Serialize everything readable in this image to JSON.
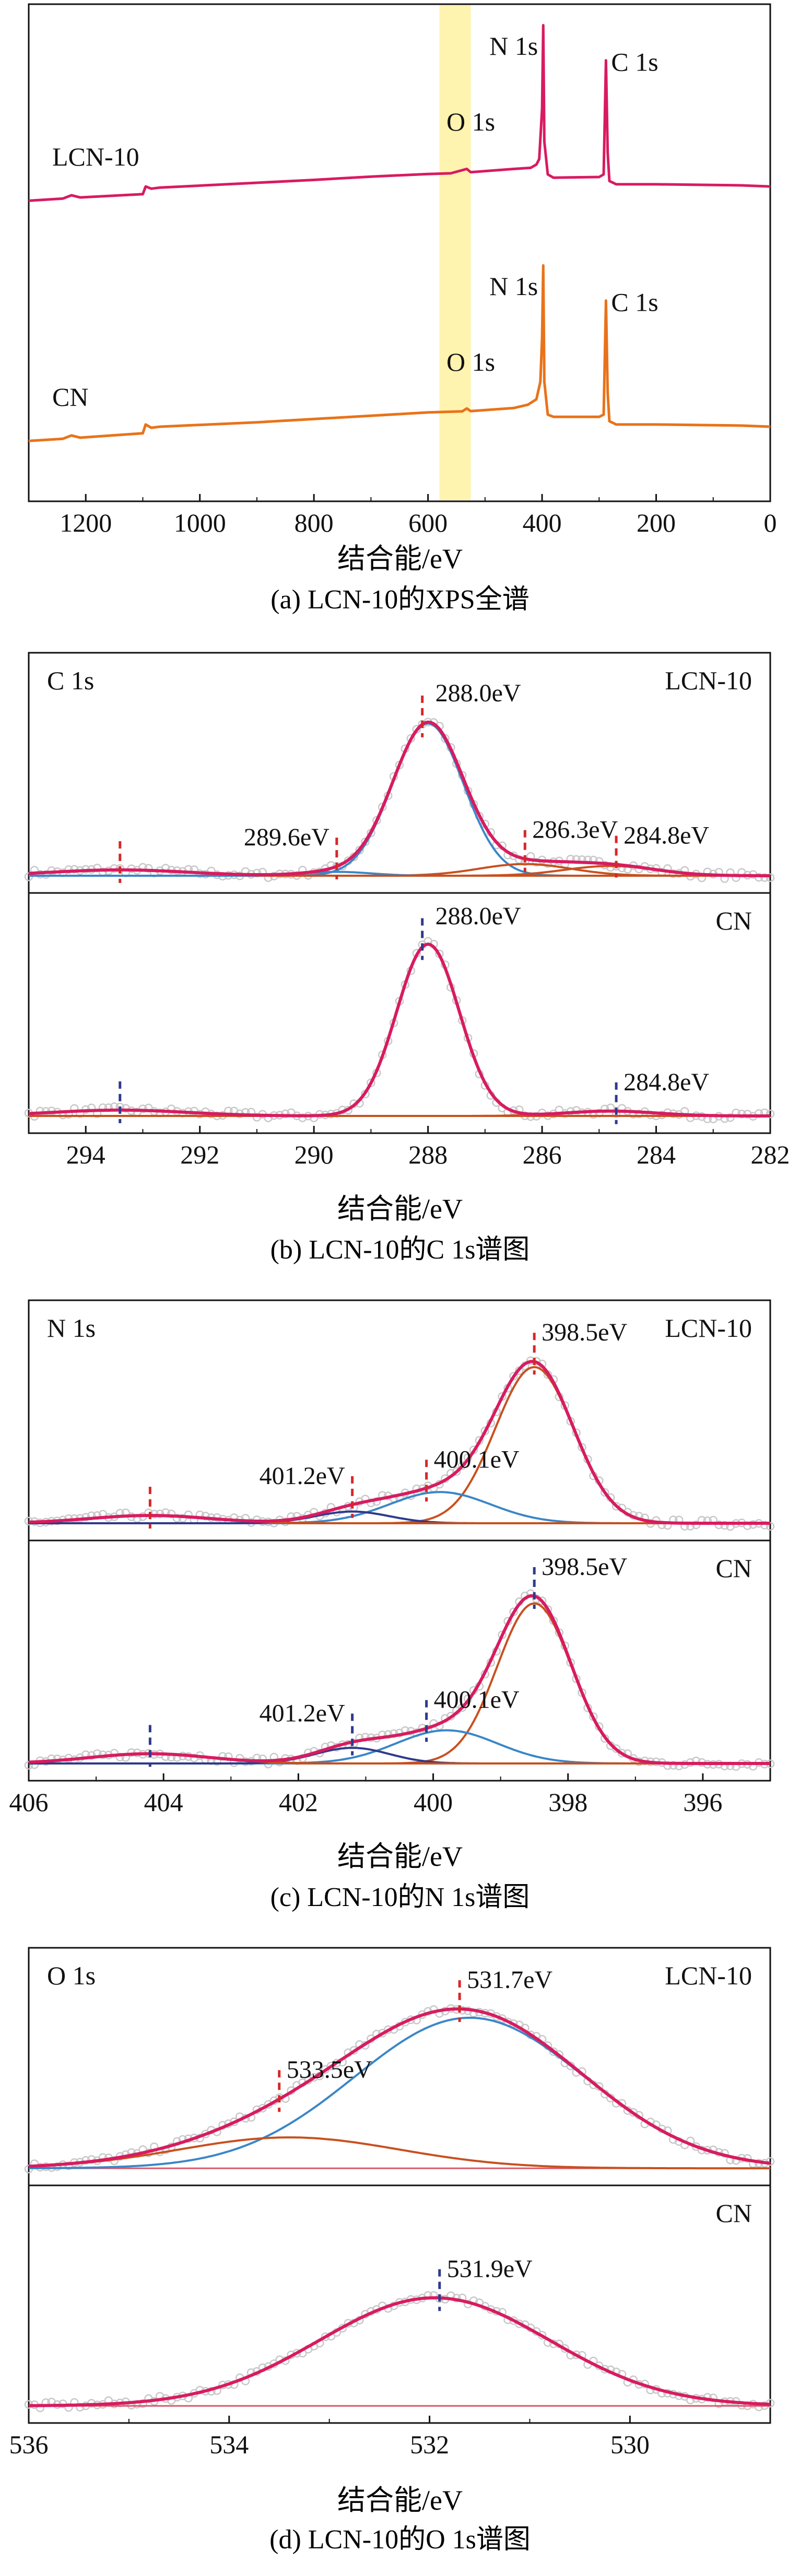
{
  "figures": [
    {
      "caption": "(a) LCN-10的XPS全谱",
      "xlabel": "结合能/eV"
    },
    {
      "caption": "(b) LCN-10的C 1s谱图",
      "xlabel": "结合能/eV"
    },
    {
      "caption": "(c) LCN-10的N 1s谱图",
      "xlabel": "结合能/eV"
    },
    {
      "caption": "(d) LCN-10的O 1s谱图",
      "xlabel": "结合能/eV"
    }
  ],
  "colors": {
    "lcn10": "#d81b60",
    "cn": "#e8731a",
    "fit_envelope": "#d81b60",
    "comp_blue": "#3a86c8",
    "comp_orange": "#c8501e",
    "baseline": "#d85a6a",
    "marker_red": "#d62728",
    "marker_navy": "#2e3a8c",
    "highlight": "#fff3b0",
    "data_points": "#c8c8c8"
  },
  "chart_data": [
    {
      "type": "line",
      "panel": "a",
      "xlim": [
        1300,
        0
      ],
      "xticks": [
        "1200",
        "1000",
        "800",
        "600",
        "400",
        "200",
        "0"
      ],
      "highlight_band": [
        580,
        525
      ],
      "series": [
        {
          "name": "LCN-10",
          "color": "#d81b60",
          "peak_labels": [
            {
              "text": "N 1s",
              "x": 398
            },
            {
              "text": "O 1s",
              "x": 531
            },
            {
              "text": "C 1s",
              "x": 288
            }
          ],
          "points": [
            [
              1300,
              0.18
            ],
            [
              1240,
              0.19
            ],
            [
              1225,
              0.205
            ],
            [
              1210,
              0.195
            ],
            [
              1100,
              0.21
            ],
            [
              1095,
              0.245
            ],
            [
              1085,
              0.235
            ],
            [
              1070,
              0.24
            ],
            [
              900,
              0.262
            ],
            [
              800,
              0.275
            ],
            [
              700,
              0.29
            ],
            [
              600,
              0.302
            ],
            [
              560,
              0.305
            ],
            [
              532,
              0.325
            ],
            [
              525,
              0.31
            ],
            [
              450,
              0.325
            ],
            [
              420,
              0.33
            ],
            [
              410,
              0.345
            ],
            [
              405,
              0.37
            ],
            [
              400,
              0.6
            ],
            [
              398,
              0.98
            ],
            [
              396,
              0.45
            ],
            [
              390,
              0.3
            ],
            [
              380,
              0.285
            ],
            [
              300,
              0.288
            ],
            [
              292,
              0.3
            ],
            [
              288,
              0.82
            ],
            [
              285,
              0.4
            ],
            [
              282,
              0.27
            ],
            [
              270,
              0.255
            ],
            [
              200,
              0.255
            ],
            [
              100,
              0.252
            ],
            [
              50,
              0.25
            ],
            [
              0,
              0.245
            ]
          ]
        },
        {
          "name": "CN",
          "color": "#e8731a",
          "peak_labels": [
            {
              "text": "N 1s",
              "x": 398
            },
            {
              "text": "O 1s",
              "x": 531
            },
            {
              "text": "C 1s",
              "x": 288
            }
          ],
          "points": [
            [
              1300,
              0.18
            ],
            [
              1240,
              0.19
            ],
            [
              1225,
              0.205
            ],
            [
              1210,
              0.195
            ],
            [
              1100,
              0.215
            ],
            [
              1095,
              0.255
            ],
            [
              1085,
              0.24
            ],
            [
              1070,
              0.245
            ],
            [
              900,
              0.265
            ],
            [
              800,
              0.28
            ],
            [
              700,
              0.295
            ],
            [
              600,
              0.31
            ],
            [
              540,
              0.315
            ],
            [
              532,
              0.328
            ],
            [
              525,
              0.316
            ],
            [
              450,
              0.33
            ],
            [
              425,
              0.345
            ],
            [
              410,
              0.37
            ],
            [
              403,
              0.45
            ],
            [
              400,
              0.65
            ],
            [
              398,
              0.98
            ],
            [
              396,
              0.45
            ],
            [
              390,
              0.3
            ],
            [
              380,
              0.29
            ],
            [
              300,
              0.29
            ],
            [
              292,
              0.3
            ],
            [
              288,
              0.82
            ],
            [
              285,
              0.4
            ],
            [
              282,
              0.27
            ],
            [
              270,
              0.255
            ],
            [
              200,
              0.255
            ],
            [
              100,
              0.252
            ],
            [
              50,
              0.25
            ],
            [
              0,
              0.245
            ]
          ]
        }
      ]
    },
    {
      "type": "line",
      "panel": "b",
      "title": "C 1s",
      "xlim": [
        295,
        282
      ],
      "xticks": [
        "294",
        "292",
        "290",
        "288",
        "286",
        "284",
        "282"
      ],
      "subplots": [
        {
          "name": "LCN-10",
          "ylim": [
            0,
            1.15
          ],
          "marker_color": "#d62728",
          "markers": [
            293.4,
            289.6,
            288.1,
            286.3,
            284.7
          ],
          "peak_labels": [
            {
              "text": "288.0eV",
              "x": 288.0
            },
            {
              "text": "286.3eV",
              "x": 286.3
            },
            {
              "text": "289.6eV",
              "x": 289.6
            },
            {
              "text": "284.8eV",
              "x": 284.7
            }
          ],
          "baseline": 0.04,
          "components": [
            {
              "color": "#3a86c8",
              "center": 288.0,
              "height": 0.78,
              "sigma": 0.62
            },
            {
              "color": "#c8501e",
              "center": 286.3,
              "height": 0.06,
              "sigma": 0.8
            },
            {
              "color": "#c8501e",
              "center": 284.8,
              "height": 0.05,
              "sigma": 0.8
            },
            {
              "color": "#3a86c8",
              "center": 289.6,
              "height": 0.02,
              "sigma": 0.6
            },
            {
              "color": "#c8501e",
              "center": 293.4,
              "height": 0.03,
              "sigma": 1.2
            }
          ]
        },
        {
          "name": "CN",
          "ylim": [
            0,
            1.15
          ],
          "marker_color": "#2e3a8c",
          "markers": [
            293.4,
            288.1,
            284.7
          ],
          "peak_labels": [
            {
              "text": "288.0eV",
              "x": 288.0
            },
            {
              "text": "284.8eV",
              "x": 284.7
            }
          ],
          "baseline": 0.04,
          "components": [
            {
              "color": "#3a86c8",
              "center": 288.0,
              "height": 0.88,
              "sigma": 0.55
            },
            {
              "color": "#c8501e",
              "center": 284.8,
              "height": 0.025,
              "sigma": 0.8
            },
            {
              "color": "#c8501e",
              "center": 293.4,
              "height": 0.03,
              "sigma": 1.2
            }
          ]
        }
      ]
    },
    {
      "type": "line",
      "panel": "c",
      "title": "N 1s",
      "xlim": [
        406,
        395
      ],
      "xticks": [
        "406",
        "404",
        "402",
        "400",
        "398",
        "396"
      ],
      "subplots": [
        {
          "name": "LCN-10",
          "ylim": [
            0,
            1.15
          ],
          "marker_color": "#d62728",
          "markers": [
            404.2,
            401.2,
            400.1,
            398.5
          ],
          "peak_labels": [
            {
              "text": "398.5eV",
              "x": 398.5
            },
            {
              "text": "400.1eV",
              "x": 400.1
            },
            {
              "text": "401.2eV",
              "x": 401.2
            }
          ],
          "baseline": 0.04,
          "components": [
            {
              "color": "#c8501e",
              "center": 398.5,
              "height": 0.8,
              "sigma": 0.58
            },
            {
              "color": "#3a86c8",
              "center": 399.9,
              "height": 0.16,
              "sigma": 0.75
            },
            {
              "color": "#2e3a8c",
              "center": 401.2,
              "height": 0.06,
              "sigma": 0.55
            },
            {
              "color": "#c8501e",
              "center": 404.2,
              "height": 0.04,
              "sigma": 0.9
            }
          ]
        },
        {
          "name": "CN",
          "ylim": [
            0,
            1.15
          ],
          "marker_color": "#2e3a8c",
          "markers": [
            404.2,
            401.2,
            400.1,
            398.5
          ],
          "peak_labels": [
            {
              "text": "398.5eV",
              "x": 398.5
            },
            {
              "text": "400.1eV",
              "x": 400.1
            },
            {
              "text": "401.2eV",
              "x": 401.2
            }
          ],
          "baseline": 0.04,
          "components": [
            {
              "color": "#c8501e",
              "center": 398.5,
              "height": 0.82,
              "sigma": 0.55
            },
            {
              "color": "#3a86c8",
              "center": 399.8,
              "height": 0.17,
              "sigma": 0.75
            },
            {
              "color": "#2e3a8c",
              "center": 401.2,
              "height": 0.08,
              "sigma": 0.55
            },
            {
              "color": "#c8501e",
              "center": 404.2,
              "height": 0.05,
              "sigma": 0.9
            }
          ]
        }
      ]
    },
    {
      "type": "line",
      "panel": "d",
      "title": "O 1s",
      "xlim": [
        536,
        528.6
      ],
      "xticks": [
        "536",
        "534",
        "532",
        "530"
      ],
      "subplots": [
        {
          "name": "LCN-10",
          "ylim": [
            0,
            1.15
          ],
          "marker_color": "#d62728",
          "markers": [
            533.5,
            531.7
          ],
          "peak_labels": [
            {
              "text": "531.7eV",
              "x": 531.7
            },
            {
              "text": "533.5eV",
              "x": 533.5
            }
          ],
          "baseline": 0.04,
          "components": [
            {
              "color": "#3a86c8",
              "center": 531.6,
              "height": 0.78,
              "sigma": 1.15
            },
            {
              "color": "#c8501e",
              "center": 533.4,
              "height": 0.16,
              "sigma": 1.1
            }
          ]
        },
        {
          "name": "CN",
          "ylim": [
            0,
            1.15
          ],
          "marker_color": "#2e3a8c",
          "markers": [
            531.9
          ],
          "peak_labels": [
            {
              "text": "531.9eV",
              "x": 531.9
            }
          ],
          "baseline": 0.04,
          "components": [
            {
              "color": "#c8501e",
              "center": 531.95,
              "height": 0.56,
              "sigma": 1.15
            }
          ]
        }
      ]
    }
  ]
}
